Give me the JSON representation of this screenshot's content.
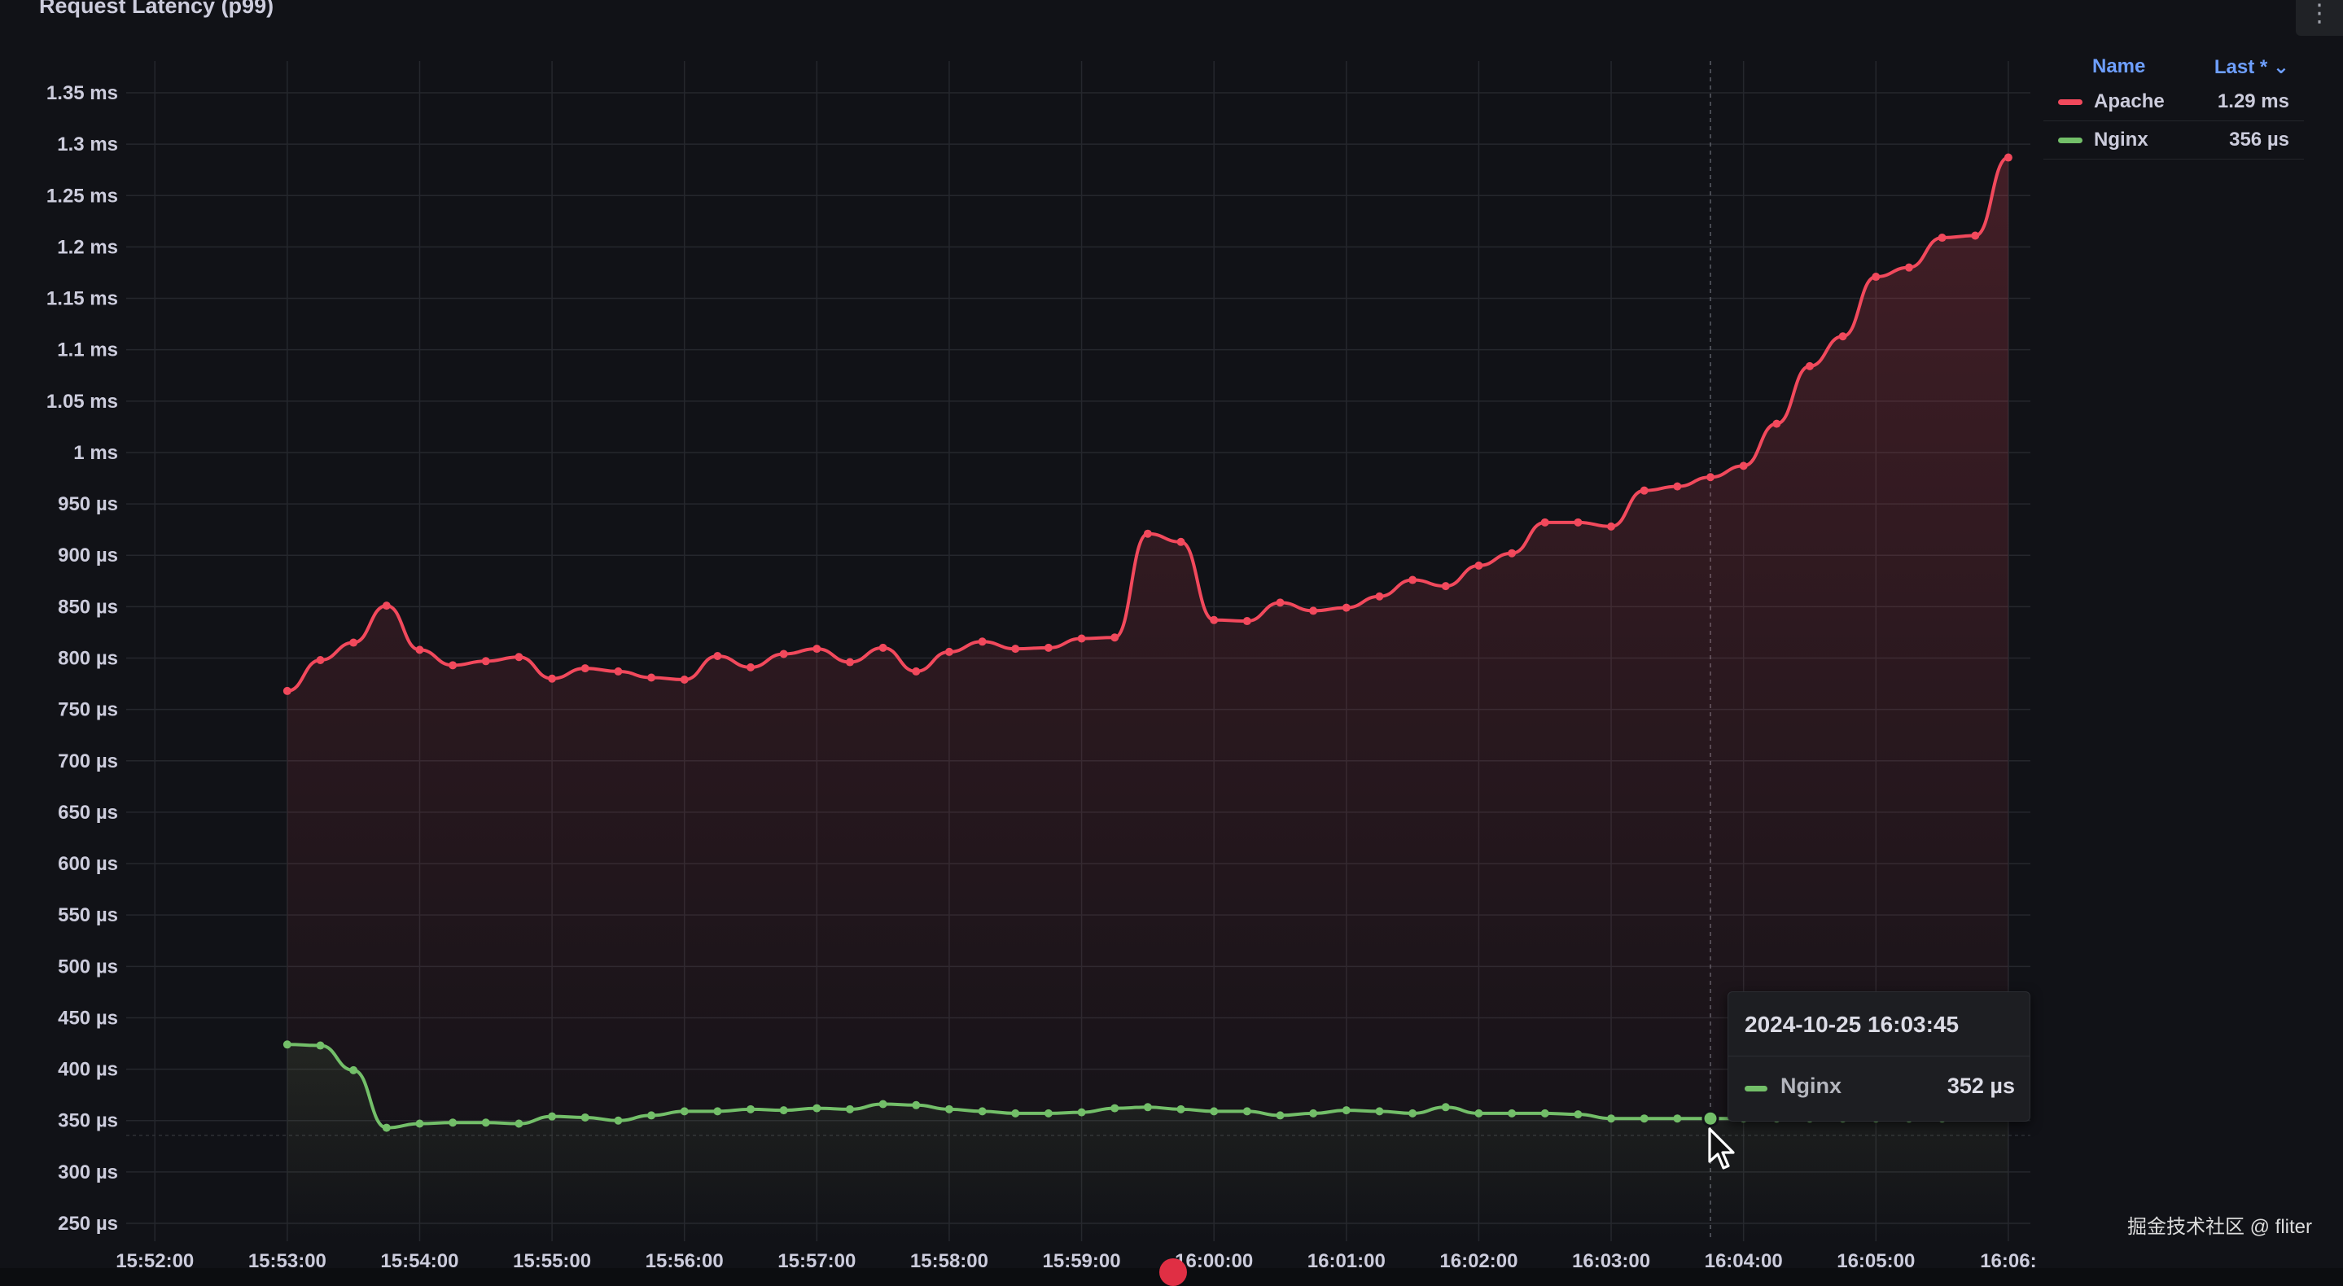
{
  "panel": {
    "title": "Request Latency (p99)",
    "menu_icon": "vertical-ellipsis-icon"
  },
  "legend": {
    "header_name": "Name",
    "header_last": "Last * ⌄",
    "items": [
      {
        "name": "Apache",
        "last": "1.29 ms",
        "color": "#f2495c"
      },
      {
        "name": "Nginx",
        "last": "356 µs",
        "color": "#73bf69"
      }
    ]
  },
  "tooltip": {
    "time": "2024-10-25 16:03:45",
    "series": "Nginx",
    "value": "352 µs",
    "color": "#73bf69"
  },
  "watermark": "掘金技术社区 @ fliter",
  "chart_data": {
    "type": "line",
    "title": "Request Latency (p99)",
    "xlabel": "",
    "ylabel": "",
    "x_unit": "time",
    "y_unit": "µs",
    "grid": true,
    "legend_position": "right",
    "xlim": [
      "15:51:47",
      "16:06:10"
    ],
    "ylim": [
      250,
      1370
    ],
    "x_ticks": [
      "15:52:00",
      "15:53:00",
      "15:54:00",
      "15:55:00",
      "15:56:00",
      "15:57:00",
      "15:58:00",
      "15:59:00",
      "16:00:00",
      "16:01:00",
      "16:02:00",
      "16:03:00",
      "16:04:00",
      "16:05:00",
      "16:06:"
    ],
    "y_ticks": [
      {
        "v": 250,
        "label": "250 µs"
      },
      {
        "v": 300,
        "label": "300 µs"
      },
      {
        "v": 350,
        "label": "350 µs"
      },
      {
        "v": 400,
        "label": "400 µs"
      },
      {
        "v": 450,
        "label": "450 µs"
      },
      {
        "v": 500,
        "label": "500 µs"
      },
      {
        "v": 550,
        "label": "550 µs"
      },
      {
        "v": 600,
        "label": "600 µs"
      },
      {
        "v": 650,
        "label": "650 µs"
      },
      {
        "v": 700,
        "label": "700 µs"
      },
      {
        "v": 750,
        "label": "750 µs"
      },
      {
        "v": 800,
        "label": "800 µs"
      },
      {
        "v": 850,
        "label": "850 µs"
      },
      {
        "v": 900,
        "label": "900 µs"
      },
      {
        "v": 950,
        "label": "950 µs"
      },
      {
        "v": 1000,
        "label": "1 ms"
      },
      {
        "v": 1050,
        "label": "1.05 ms"
      },
      {
        "v": 1100,
        "label": "1.1 ms"
      },
      {
        "v": 1150,
        "label": "1.15 ms"
      },
      {
        "v": 1200,
        "label": "1.2 ms"
      },
      {
        "v": 1250,
        "label": "1.25 ms"
      },
      {
        "v": 1300,
        "label": "1.3 ms"
      },
      {
        "v": 1350,
        "label": "1.35 ms"
      }
    ],
    "x": [
      "15:53:00",
      "15:53:15",
      "15:53:30",
      "15:53:45",
      "15:54:00",
      "15:54:15",
      "15:54:30",
      "15:54:45",
      "15:55:00",
      "15:55:15",
      "15:55:30",
      "15:55:45",
      "15:56:00",
      "15:56:15",
      "15:56:30",
      "15:56:45",
      "15:57:00",
      "15:57:15",
      "15:57:30",
      "15:57:45",
      "15:58:00",
      "15:58:15",
      "15:58:30",
      "15:58:45",
      "15:59:00",
      "15:59:15",
      "15:59:30",
      "15:59:45",
      "16:00:00",
      "16:00:15",
      "16:00:30",
      "16:00:45",
      "16:01:00",
      "16:01:15",
      "16:01:30",
      "16:01:45",
      "16:02:00",
      "16:02:15",
      "16:02:30",
      "16:02:45",
      "16:03:00",
      "16:03:15",
      "16:03:30",
      "16:03:45",
      "16:04:00",
      "16:04:15",
      "16:04:30",
      "16:04:45",
      "16:05:00",
      "16:05:15",
      "16:05:30",
      "16:05:45",
      "16:06:00"
    ],
    "series": [
      {
        "name": "Apache",
        "color": "#f2495c",
        "values": [
          768,
          798,
          815,
          851,
          808,
          793,
          797,
          801,
          780,
          790,
          787,
          781,
          779,
          802,
          791,
          804,
          809,
          796,
          810,
          787,
          806,
          816,
          809,
          810,
          819,
          820,
          921,
          913,
          837,
          836,
          854,
          846,
          849,
          860,
          876,
          870,
          890,
          902,
          932,
          932,
          928,
          963,
          967,
          976,
          987,
          1028,
          1084,
          1113,
          1171,
          1180,
          1209,
          1211,
          1287
        ]
      },
      {
        "name": "Nginx",
        "color": "#73bf69",
        "values": [
          424,
          423,
          399,
          343,
          347,
          348,
          348,
          347,
          354,
          353,
          350,
          355,
          359,
          359,
          361,
          360,
          362,
          361,
          366,
          365,
          361,
          359,
          357,
          357,
          358,
          362,
          363,
          361,
          359,
          359,
          355,
          357,
          360,
          359,
          357,
          363,
          357,
          357,
          357,
          356,
          352,
          352,
          352,
          352,
          352,
          352,
          352,
          352,
          352,
          352,
          352,
          354,
          356
        ]
      }
    ]
  }
}
